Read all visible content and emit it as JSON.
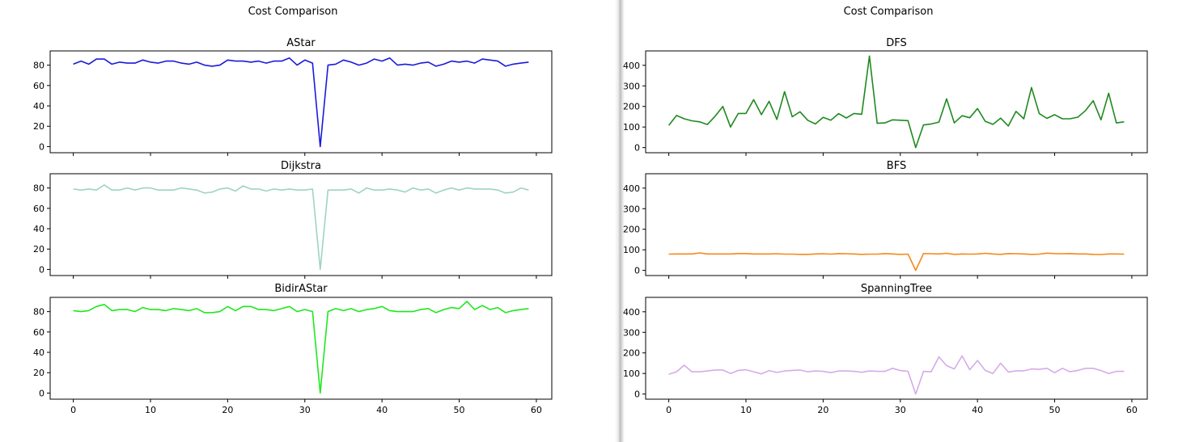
{
  "left_window": {
    "figure_title": "Cost Comparison",
    "subplots": [
      {
        "title": "AStar"
      },
      {
        "title": "Dijkstra"
      },
      {
        "title": "BidirAStar"
      }
    ]
  },
  "right_window": {
    "figure_title": "Cost Comparison",
    "subplots": [
      {
        "title": "DFS"
      },
      {
        "title": "BFS"
      },
      {
        "title": "SpanningTree"
      }
    ]
  },
  "chart_data": [
    {
      "type": "line",
      "title": "AStar",
      "color": "#1a1adb",
      "x": [
        0,
        1,
        2,
        3,
        4,
        5,
        6,
        7,
        8,
        9,
        10,
        11,
        12,
        13,
        14,
        15,
        16,
        17,
        18,
        19,
        20,
        21,
        22,
        23,
        24,
        25,
        26,
        27,
        28,
        29,
        30,
        31,
        32,
        33,
        34,
        35,
        36,
        37,
        38,
        39,
        40,
        41,
        42,
        43,
        44,
        45,
        46,
        47,
        48,
        49,
        50,
        51,
        52,
        53,
        54,
        55,
        56,
        57,
        58,
        59
      ],
      "values": [
        81,
        84,
        81,
        86,
        86,
        81,
        83,
        82,
        82,
        85,
        83,
        82,
        84,
        84,
        82,
        81,
        83,
        80,
        79,
        80,
        85,
        84,
        84,
        83,
        84,
        82,
        84,
        84,
        87,
        80,
        85,
        82,
        0,
        80,
        81,
        85,
        83,
        80,
        82,
        86,
        84,
        87,
        80,
        81,
        80,
        82,
        83,
        79,
        81,
        84,
        83,
        84,
        82,
        86,
        85,
        84,
        79,
        81,
        82,
        83
      ],
      "ylim": [
        -6,
        94
      ],
      "yticks": [
        0,
        20,
        40,
        60,
        80
      ],
      "xticks": [
        0,
        10,
        20,
        30,
        40,
        50,
        60
      ],
      "show_xtick_labels": false
    },
    {
      "type": "line",
      "title": "Dijkstra",
      "color": "#9ed4c1",
      "x": [
        0,
        1,
        2,
        3,
        4,
        5,
        6,
        7,
        8,
        9,
        10,
        11,
        12,
        13,
        14,
        15,
        16,
        17,
        18,
        19,
        20,
        21,
        22,
        23,
        24,
        25,
        26,
        27,
        28,
        29,
        30,
        31,
        32,
        33,
        34,
        35,
        36,
        37,
        38,
        39,
        40,
        41,
        42,
        43,
        44,
        45,
        46,
        47,
        48,
        49,
        50,
        51,
        52,
        53,
        54,
        55,
        56,
        57,
        58,
        59
      ],
      "values": [
        79,
        78,
        79,
        78,
        83,
        78,
        78,
        80,
        78,
        80,
        80,
        78,
        78,
        78,
        80,
        79,
        78,
        75,
        76,
        79,
        80,
        77,
        82,
        79,
        79,
        77,
        79,
        78,
        79,
        78,
        78,
        79,
        0,
        78,
        78,
        78,
        79,
        75,
        80,
        78,
        78,
        79,
        78,
        76,
        80,
        78,
        79,
        75,
        78,
        80,
        78,
        80,
        79,
        79,
        79,
        78,
        75,
        76,
        80,
        78
      ],
      "ylim": [
        -6,
        94
      ],
      "yticks": [
        0,
        20,
        40,
        60,
        80
      ],
      "xticks": [
        0,
        10,
        20,
        30,
        40,
        50,
        60
      ],
      "show_xtick_labels": false
    },
    {
      "type": "line",
      "title": "BidirAStar",
      "color": "#1ee81e",
      "x": [
        0,
        1,
        2,
        3,
        4,
        5,
        6,
        7,
        8,
        9,
        10,
        11,
        12,
        13,
        14,
        15,
        16,
        17,
        18,
        19,
        20,
        21,
        22,
        23,
        24,
        25,
        26,
        27,
        28,
        29,
        30,
        31,
        32,
        33,
        34,
        35,
        36,
        37,
        38,
        39,
        40,
        41,
        42,
        43,
        44,
        45,
        46,
        47,
        48,
        49,
        50,
        51,
        52,
        53,
        54,
        55,
        56,
        57,
        58,
        59
      ],
      "values": [
        81,
        80,
        81,
        85,
        87,
        81,
        82,
        82,
        80,
        84,
        82,
        82,
        81,
        83,
        82,
        81,
        83,
        79,
        79,
        80,
        85,
        81,
        85,
        85,
        82,
        82,
        81,
        83,
        85,
        80,
        82,
        80,
        0,
        80,
        83,
        81,
        83,
        80,
        82,
        83,
        85,
        81,
        80,
        80,
        80,
        82,
        83,
        79,
        82,
        84,
        83,
        90,
        82,
        86,
        82,
        84,
        79,
        81,
        82,
        83
      ],
      "ylim": [
        -6,
        94
      ],
      "yticks": [
        0,
        20,
        40,
        60,
        80
      ],
      "xticks": [
        0,
        10,
        20,
        30,
        40,
        50,
        60
      ],
      "show_xtick_labels": true
    },
    {
      "type": "line",
      "title": "DFS",
      "color": "#1f8a1f",
      "x": [
        0,
        1,
        2,
        3,
        4,
        5,
        6,
        7,
        8,
        9,
        10,
        11,
        12,
        13,
        14,
        15,
        16,
        17,
        18,
        19,
        20,
        21,
        22,
        23,
        24,
        25,
        26,
        27,
        28,
        29,
        30,
        31,
        32,
        33,
        34,
        35,
        36,
        37,
        38,
        39,
        40,
        41,
        42,
        43,
        44,
        45,
        46,
        47,
        48,
        49,
        50,
        51,
        52,
        53,
        54,
        55,
        56,
        57,
        58,
        59
      ],
      "values": [
        108,
        156,
        140,
        130,
        125,
        112,
        152,
        200,
        100,
        166,
        166,
        233,
        160,
        225,
        137,
        272,
        150,
        174,
        133,
        115,
        147,
        133,
        165,
        144,
        166,
        162,
        445,
        118,
        120,
        135,
        133,
        131,
        0,
        110,
        115,
        124,
        237,
        120,
        155,
        145,
        190,
        128,
        113,
        143,
        105,
        176,
        140,
        292,
        165,
        142,
        160,
        140,
        140,
        148,
        180,
        228,
        135,
        264,
        120,
        125
      ],
      "ylim": [
        -25,
        470
      ],
      "yticks": [
        0,
        100,
        200,
        300,
        400
      ],
      "xticks": [
        0,
        10,
        20,
        30,
        40,
        50,
        60
      ],
      "show_xtick_labels": false
    },
    {
      "type": "line",
      "title": "BFS",
      "color": "#f5891a",
      "x": [
        0,
        1,
        2,
        3,
        4,
        5,
        6,
        7,
        8,
        9,
        10,
        11,
        12,
        13,
        14,
        15,
        16,
        17,
        18,
        19,
        20,
        21,
        22,
        23,
        24,
        25,
        26,
        27,
        28,
        29,
        30,
        31,
        32,
        33,
        34,
        35,
        36,
        37,
        38,
        39,
        40,
        41,
        42,
        43,
        44,
        45,
        46,
        47,
        48,
        49,
        50,
        51,
        52,
        53,
        54,
        55,
        56,
        57,
        58,
        59
      ],
      "values": [
        79,
        80,
        80,
        80,
        85,
        80,
        80,
        80,
        80,
        82,
        82,
        80,
        80,
        80,
        81,
        79,
        79,
        78,
        78,
        80,
        81,
        79,
        82,
        81,
        80,
        78,
        79,
        79,
        82,
        80,
        78,
        79,
        0,
        82,
        81,
        80,
        83,
        78,
        80,
        79,
        80,
        83,
        80,
        78,
        82,
        81,
        80,
        78,
        79,
        84,
        82,
        81,
        82,
        80,
        80,
        78,
        77,
        80,
        80,
        79
      ],
      "ylim": [
        -25,
        470
      ],
      "yticks": [
        0,
        100,
        200,
        300,
        400
      ],
      "xticks": [
        0,
        10,
        20,
        30,
        40,
        50,
        60
      ],
      "show_xtick_labels": false
    },
    {
      "type": "line",
      "title": "SpanningTree",
      "color": "#d7aaea",
      "x": [
        0,
        1,
        2,
        3,
        4,
        5,
        6,
        7,
        8,
        9,
        10,
        11,
        12,
        13,
        14,
        15,
        16,
        17,
        18,
        19,
        20,
        21,
        22,
        23,
        24,
        25,
        26,
        27,
        28,
        29,
        30,
        31,
        32,
        33,
        34,
        35,
        36,
        37,
        38,
        39,
        40,
        41,
        42,
        43,
        44,
        45,
        46,
        47,
        48,
        49,
        50,
        51,
        52,
        53,
        54,
        55,
        56,
        57,
        58,
        59
      ],
      "values": [
        96,
        108,
        140,
        108,
        108,
        112,
        117,
        117,
        100,
        115,
        118,
        108,
        98,
        114,
        105,
        112,
        115,
        117,
        108,
        112,
        110,
        104,
        112,
        112,
        110,
        106,
        112,
        110,
        110,
        125,
        114,
        110,
        0,
        110,
        108,
        181,
        138,
        122,
        185,
        118,
        163,
        115,
        100,
        150,
        107,
        113,
        113,
        122,
        120,
        125,
        104,
        125,
        108,
        115,
        125,
        125,
        114,
        100,
        110,
        110
      ],
      "ylim": [
        -25,
        470
      ],
      "yticks": [
        0,
        100,
        200,
        300,
        400
      ],
      "xticks": [
        0,
        10,
        20,
        30,
        40,
        50,
        60
      ],
      "show_xtick_labels": true
    }
  ]
}
